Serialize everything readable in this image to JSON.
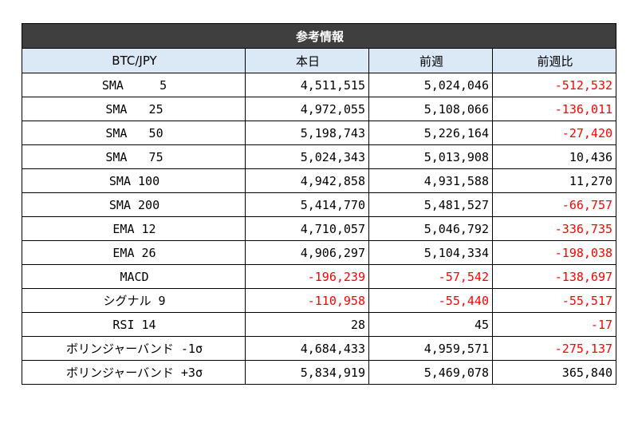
{
  "table": {
    "title": "参考情報",
    "headers": [
      "BTC/JPY",
      "本日",
      "前週",
      "前週比"
    ],
    "rows": [
      {
        "label": "SMA     5",
        "today": "4,511,515",
        "last_week": "5,024,046",
        "change": "-512,532",
        "neg_today": false,
        "neg_last": false,
        "neg_change": true
      },
      {
        "label": "SMA   25",
        "today": "4,972,055",
        "last_week": "5,108,066",
        "change": "-136,011",
        "neg_today": false,
        "neg_last": false,
        "neg_change": true
      },
      {
        "label": "SMA   50",
        "today": "5,198,743",
        "last_week": "5,226,164",
        "change": "-27,420",
        "neg_today": false,
        "neg_last": false,
        "neg_change": true
      },
      {
        "label": "SMA   75",
        "today": "5,024,343",
        "last_week": "5,013,908",
        "change": "10,436",
        "neg_today": false,
        "neg_last": false,
        "neg_change": false
      },
      {
        "label": "SMA 100",
        "today": "4,942,858",
        "last_week": "4,931,588",
        "change": "11,270",
        "neg_today": false,
        "neg_last": false,
        "neg_change": false
      },
      {
        "label": "SMA 200",
        "today": "5,414,770",
        "last_week": "5,481,527",
        "change": "-66,757",
        "neg_today": false,
        "neg_last": false,
        "neg_change": true
      },
      {
        "label": "EMA 12",
        "today": "4,710,057",
        "last_week": "5,046,792",
        "change": "-336,735",
        "neg_today": false,
        "neg_last": false,
        "neg_change": true
      },
      {
        "label": "EMA 26",
        "today": "4,906,297",
        "last_week": "5,104,334",
        "change": "-198,038",
        "neg_today": false,
        "neg_last": false,
        "neg_change": true
      },
      {
        "label": "MACD",
        "today": "-196,239",
        "last_week": "-57,542",
        "change": "-138,697",
        "neg_today": true,
        "neg_last": true,
        "neg_change": true
      },
      {
        "label": "シグナル 9",
        "today": "-110,958",
        "last_week": "-55,440",
        "change": "-55,517",
        "neg_today": true,
        "neg_last": true,
        "neg_change": true
      },
      {
        "label": "RSI 14",
        "today": "28",
        "last_week": "45",
        "change": "-17",
        "neg_today": false,
        "neg_last": false,
        "neg_change": true
      },
      {
        "label": "ボリンジャーバンド -1σ",
        "today": "4,684,433",
        "last_week": "4,959,571",
        "change": "-275,137",
        "neg_today": false,
        "neg_last": false,
        "neg_change": true
      },
      {
        "label": "ボリンジャーバンド +3σ",
        "today": "5,834,919",
        "last_week": "5,469,078",
        "change": "365,840",
        "neg_today": false,
        "neg_last": false,
        "neg_change": false
      }
    ]
  },
  "colors": {
    "title_bg": "#3f3f3f",
    "header_bg": "#dbe8f5",
    "negative": "#ff0000",
    "border": "#000000"
  }
}
